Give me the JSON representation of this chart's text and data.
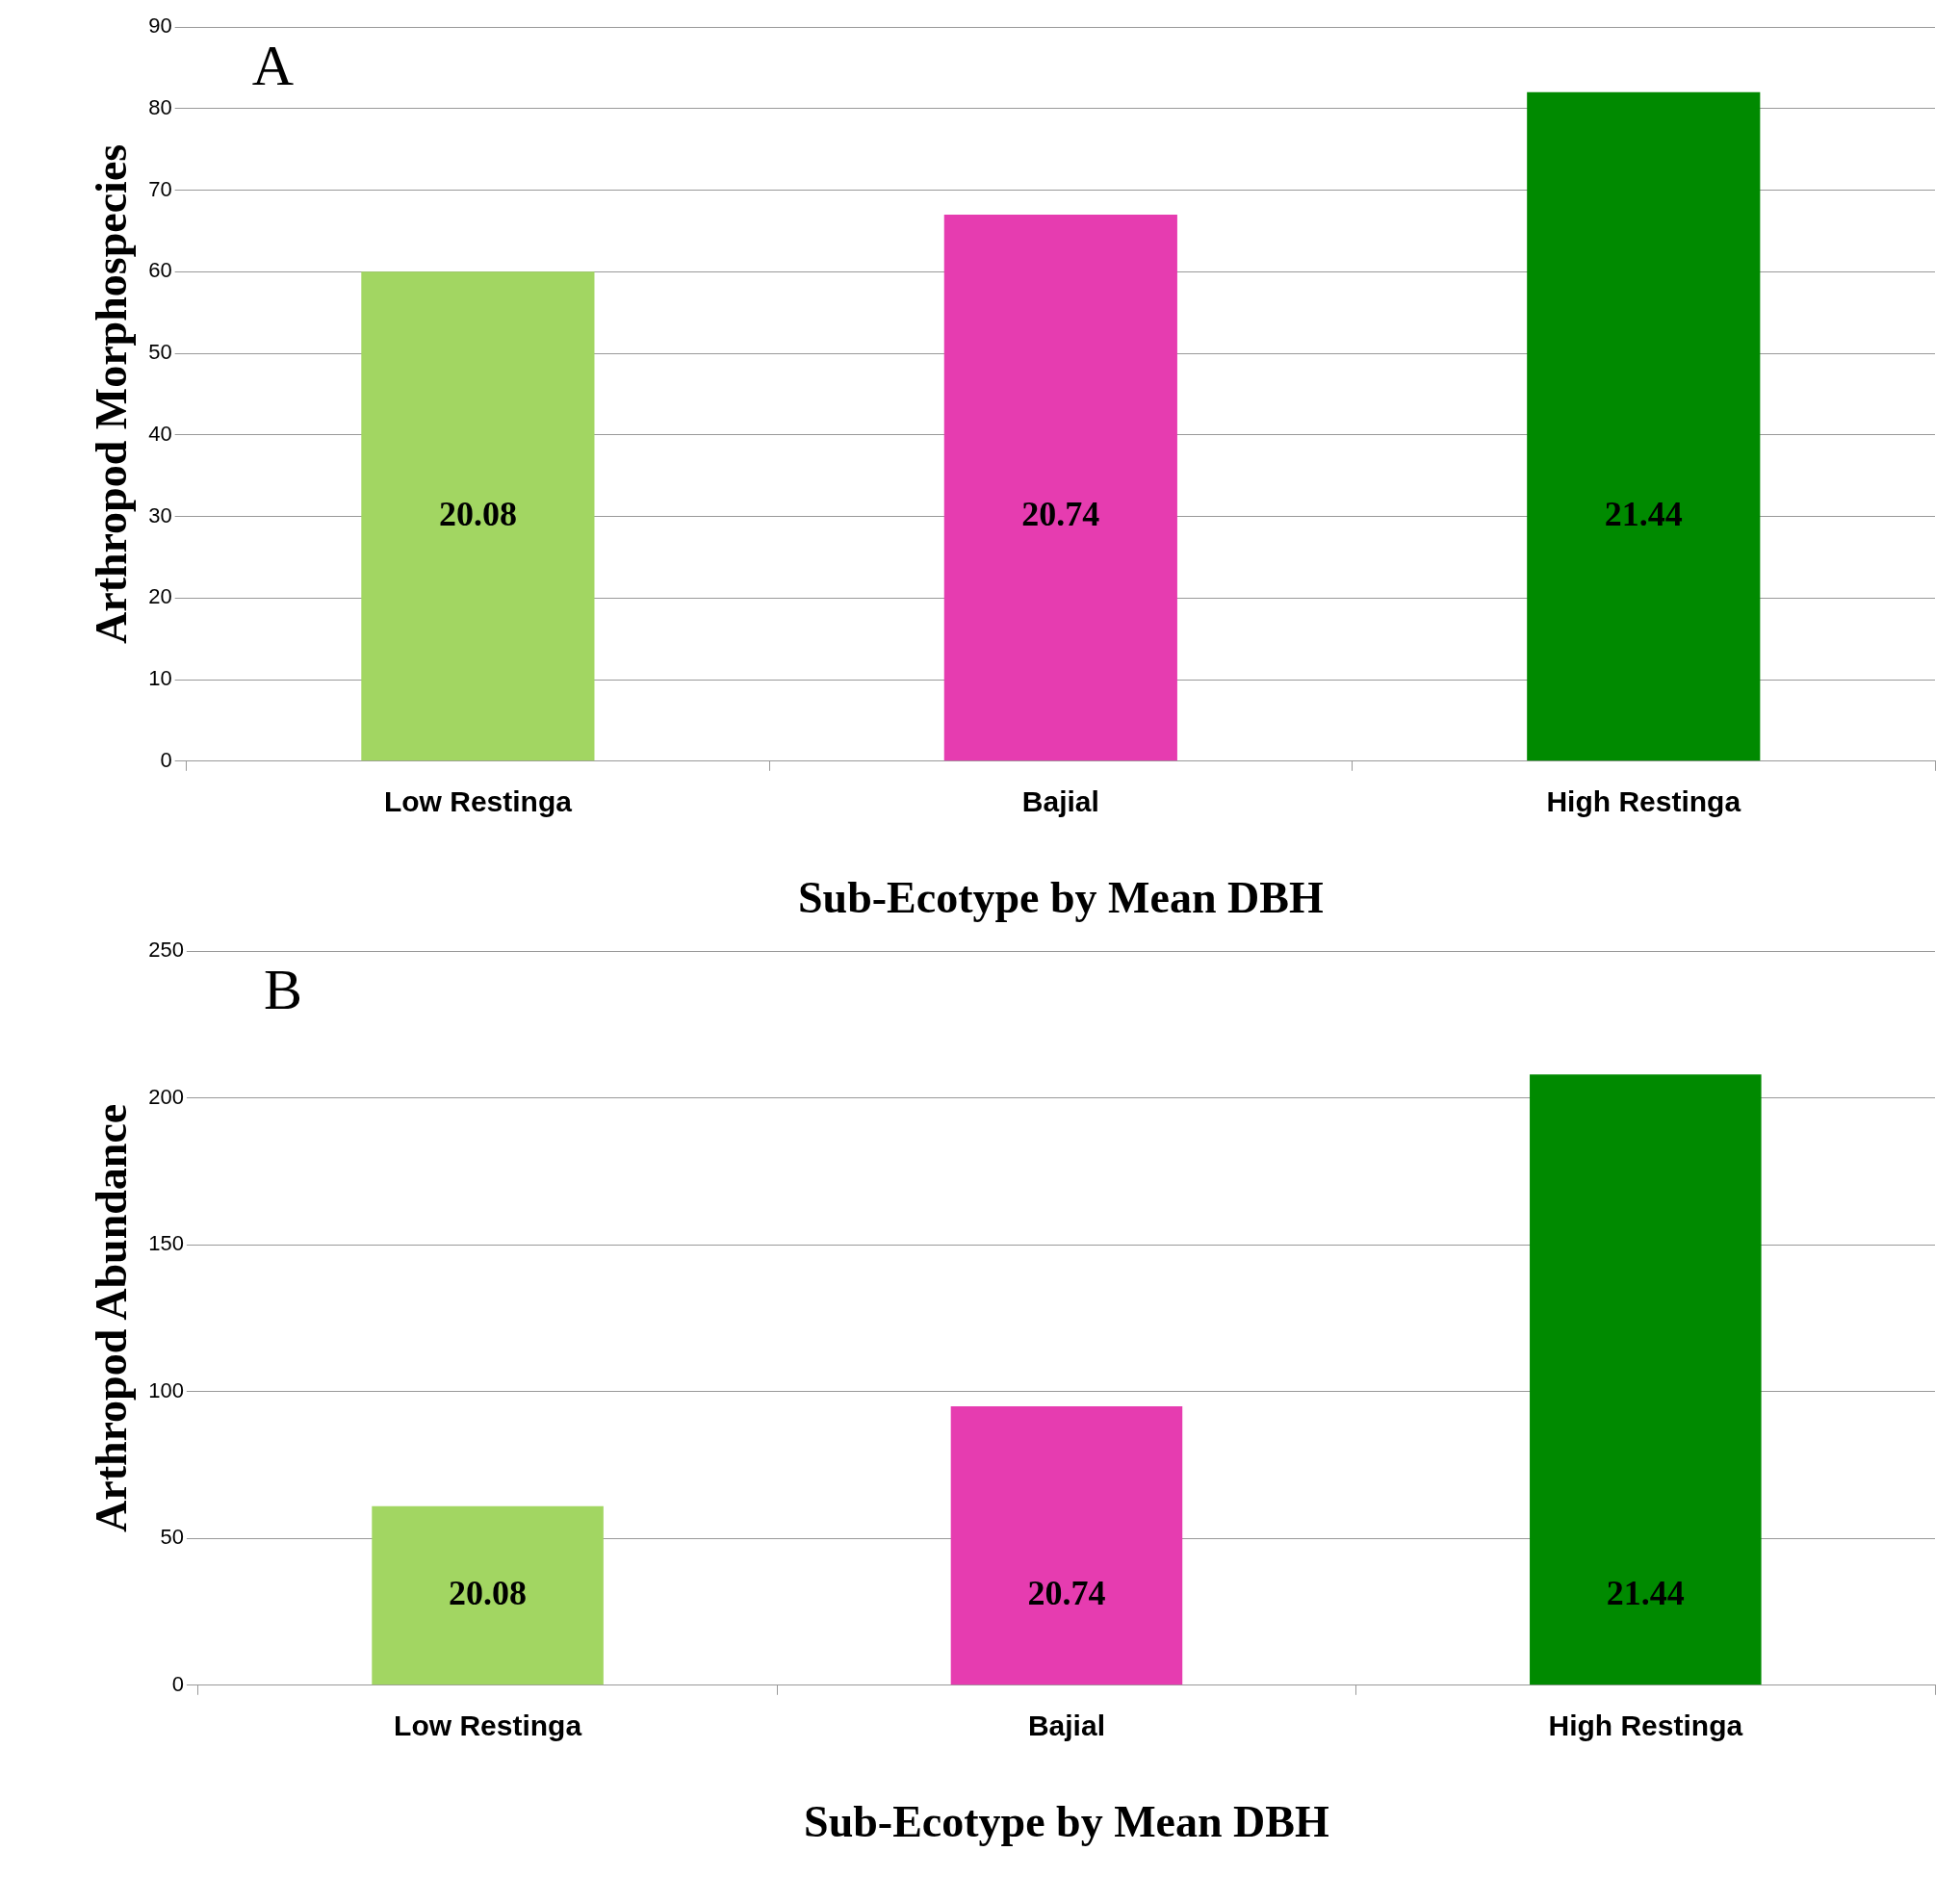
{
  "chart_data": [
    {
      "type": "bar",
      "xlabel": "Sub-Ecotype by Mean DBH",
      "ylabel": "Arthropod Morphospecies",
      "annotations": [
        "A",
        "20.08",
        "20.74",
        "21.44"
      ],
      "categories": [
        "Low Restinga",
        "Bajial",
        "High Restinga"
      ],
      "values": [
        60,
        67,
        82
      ],
      "colors": [
        "#a2d662",
        "#e63cb0",
        "#008a00"
      ],
      "ylim": [
        0,
        90
      ],
      "yticks": [
        0,
        10,
        20,
        30,
        40,
        50,
        60,
        70,
        80,
        90
      ],
      "grid": "y",
      "legend": false
    },
    {
      "type": "bar",
      "xlabel": "Sub-Ecotype by Mean DBH",
      "ylabel": "Arthropod Abundance",
      "annotations": [
        "B",
        "20.08",
        "20.74",
        "21.44"
      ],
      "categories": [
        "Low Restinga",
        "Bajial",
        "High Restinga"
      ],
      "values": [
        61,
        95,
        208
      ],
      "colors": [
        "#a2d662",
        "#e63cb0",
        "#008a00"
      ],
      "ylim": [
        0,
        250
      ],
      "yticks": [
        0,
        50,
        100,
        150,
        200,
        250
      ],
      "grid": "y",
      "legend": false
    }
  ]
}
